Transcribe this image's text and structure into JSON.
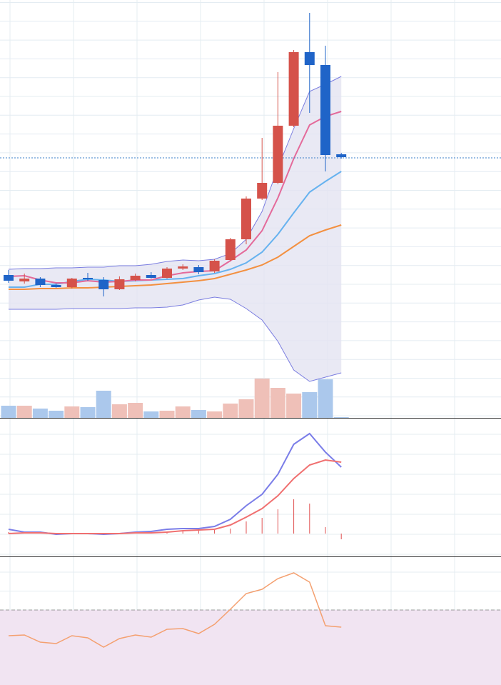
{
  "chart_data": [
    {
      "type": "candlestick",
      "open": [
        200,
        191,
        195,
        186,
        183,
        196,
        193,
        180,
        193,
        200,
        196,
        209,
        211,
        205,
        221,
        250,
        307,
        329,
        409,
        512,
        494,
        369
      ],
      "high": [
        207,
        202,
        197,
        188,
        196,
        203,
        197,
        198,
        202,
        204,
        211,
        215,
        214,
        222,
        252,
        310,
        392,
        484,
        515,
        567,
        521,
        371
      ],
      "low": [
        189,
        188,
        183,
        182,
        181,
        192,
        170,
        179,
        191,
        195,
        195,
        207,
        201,
        203,
        219,
        243,
        305,
        327,
        407,
        427,
        345,
        363
      ],
      "close": [
        192,
        195,
        186,
        183,
        195,
        194,
        180,
        194,
        199,
        196,
        209,
        212,
        204,
        220,
        250,
        307,
        329,
        409,
        512,
        494,
        368,
        365
      ],
      "up_color": "#d5524a",
      "down_color": "#1f64c8",
      "ylim": [
        0,
        585
      ],
      "band": {
        "upper": [
          208,
          209,
          209,
          210,
          210,
          211,
          211,
          213,
          213,
          215,
          219,
          221,
          220,
          222,
          230,
          250,
          289,
          350,
          405,
          457,
          467,
          478
        ],
        "lower": [
          152,
          152,
          152,
          152,
          153,
          153,
          153,
          153,
          154,
          154,
          155,
          158,
          165,
          169,
          166,
          153,
          137,
          107,
          67,
          51,
          57,
          63
        ],
        "color": "#7a7de0",
        "fill": "#e3e3f1"
      },
      "series": [
        {
          "color": "#f39040",
          "values": [
            180,
            180,
            181,
            181,
            182,
            182,
            183,
            184,
            185,
            186,
            188,
            190,
            192,
            195,
            201,
            207,
            214,
            225,
            240,
            255,
            263,
            270
          ]
        },
        {
          "color": "#66b2ef",
          "values": [
            183,
            183,
            187,
            187,
            191,
            194,
            193,
            191,
            192,
            193,
            194,
            195,
            199,
            202,
            208,
            217,
            232,
            257,
            287,
            316,
            331,
            345
          ]
        },
        {
          "color": "#e46a9a",
          "values": [
            198,
            199,
            193,
            189,
            189,
            192,
            190,
            191,
            193,
            193,
            199,
            203,
            205,
            206,
            220,
            235,
            262,
            308,
            363,
            410,
            422,
            429
          ]
        }
      ],
      "last_price": 364,
      "last_price_color": "#3a7fc8"
    },
    {
      "type": "volume",
      "values": [
        17,
        17,
        13,
        10,
        16,
        15,
        38,
        19,
        21,
        9,
        10,
        16,
        11,
        9,
        20,
        26,
        55,
        42,
        34,
        36,
        54,
        1
      ],
      "up_color": "#efc0b8",
      "down_color": "#abc8ec",
      "ylim": [
        0,
        585
      ]
    },
    {
      "type": "macd",
      "ylim": [
        -32,
        162
      ],
      "series": [
        {
          "color": "#7a7de8",
          "values": [
            6,
            2,
            2,
            -1,
            0,
            0,
            -1,
            0,
            2,
            3,
            6,
            7,
            7,
            10,
            20,
            39,
            55,
            83,
            125,
            140,
            114,
            93
          ]
        },
        {
          "color": "#f07070",
          "values": [
            0,
            1,
            1,
            0,
            0,
            0,
            0,
            0,
            1,
            1,
            2,
            4,
            5,
            6,
            12,
            23,
            35,
            53,
            77,
            96,
            103,
            100
          ]
        }
      ],
      "histogram": [
        2,
        1,
        1,
        0,
        0,
        0,
        0,
        0,
        1,
        2,
        3,
        4,
        4,
        5,
        7,
        17,
        22,
        34,
        48,
        42,
        9,
        -8
      ],
      "histogram_color": "#e05050"
    },
    {
      "type": "rsi",
      "ylim": [
        0,
        180
      ],
      "values": [
        69,
        70,
        60,
        58,
        69,
        66,
        53,
        65,
        70,
        67,
        78,
        79,
        72,
        85,
        106,
        128,
        134,
        149,
        157,
        144,
        83,
        81
      ],
      "color": "#f4a070",
      "reference": 105,
      "reference_fill": "#f1e4f2"
    }
  ]
}
